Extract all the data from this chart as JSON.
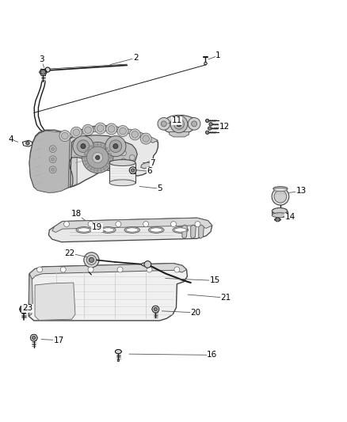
{
  "bg_color": "#ffffff",
  "line_color": "#1a1a1a",
  "gray_dark": "#555555",
  "gray_mid": "#888888",
  "gray_light": "#cccccc",
  "gray_fill": "#d8d8d8",
  "gray_fill2": "#ebebeb",
  "label_fontsize": 7.5,
  "labels_info": [
    [
      1,
      0.63,
      0.951,
      0.595,
      0.938
    ],
    [
      2,
      0.39,
      0.944,
      0.31,
      0.923
    ],
    [
      3,
      0.118,
      0.94,
      0.126,
      0.91
    ],
    [
      4,
      0.028,
      0.708,
      0.055,
      0.698
    ],
    [
      5,
      0.46,
      0.565,
      0.395,
      0.572
    ],
    [
      6,
      0.43,
      0.615,
      0.378,
      0.62
    ],
    [
      7,
      0.44,
      0.64,
      0.405,
      0.64
    ],
    [
      11,
      0.51,
      0.762,
      0.478,
      0.752
    ],
    [
      12,
      0.648,
      0.745,
      0.612,
      0.74
    ],
    [
      13,
      0.87,
      0.558,
      0.828,
      0.552
    ],
    [
      14,
      0.838,
      0.482,
      0.812,
      0.484
    ],
    [
      15,
      0.62,
      0.298,
      0.47,
      0.305
    ],
    [
      16,
      0.612,
      0.082,
      0.365,
      0.085
    ],
    [
      17,
      0.168,
      0.125,
      0.11,
      0.128
    ],
    [
      18,
      0.218,
      0.492,
      0.248,
      0.47
    ],
    [
      19,
      0.278,
      0.452,
      0.31,
      0.438
    ],
    [
      20,
      0.565,
      0.205,
      0.46,
      0.21
    ],
    [
      21,
      0.652,
      0.248,
      0.535,
      0.258
    ],
    [
      22,
      0.198,
      0.378,
      0.255,
      0.365
    ],
    [
      23,
      0.076,
      0.218,
      0.088,
      0.212
    ]
  ]
}
